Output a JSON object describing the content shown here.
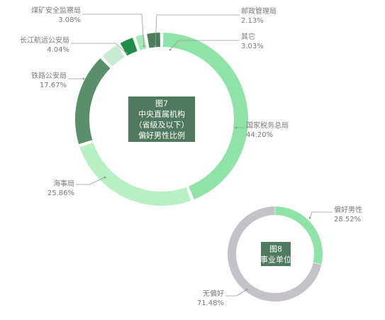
{
  "chart_data": [
    {
      "type": "pie",
      "variant": "donut",
      "title": [
        "图7",
        "中央直属机构",
        "（省级及以下）",
        "偏好男性比例"
      ],
      "start_angle_deg": 0,
      "slices": [
        {
          "label": "国家税务总局",
          "value": 44.2,
          "value_label": "44.20%",
          "color": "#8fe3a8"
        },
        {
          "label": "海事局",
          "value": 25.86,
          "value_label": "25.86%",
          "color": "#b6f0c4"
        },
        {
          "label": "铁路公安局",
          "value": 17.67,
          "value_label": "17.67%",
          "color": "#5a8f6b"
        },
        {
          "label": "长江航运公安局",
          "value": 4.04,
          "value_label": "4.04%",
          "color": "#c8ead2"
        },
        {
          "label": "煤矿安全监察局",
          "value": 3.08,
          "value_label": "3.08%",
          "color": "#1e8c4a"
        },
        {
          "label": "邮政管理局",
          "value": 2.13,
          "value_label": "2.13%",
          "color": "#a7e9b8"
        },
        {
          "label": "其它",
          "value": 3.03,
          "value_label": "3.03%",
          "color": "#4a7d5c"
        }
      ]
    },
    {
      "type": "pie",
      "variant": "donut",
      "title": [
        "图8",
        "事业单位"
      ],
      "start_angle_deg": 0,
      "slices": [
        {
          "label": "偏好男性",
          "value": 28.52,
          "value_label": "28.52%",
          "color": "#8fe3a8"
        },
        {
          "label": "无偏好",
          "value": 71.48,
          "value_label": "71.48%",
          "color": "#c4c2c8"
        }
      ]
    }
  ],
  "colors": {
    "title_box": "#4f7a5f",
    "label_text": "#7a7a7a",
    "leader_line": "#9a9a9a"
  }
}
